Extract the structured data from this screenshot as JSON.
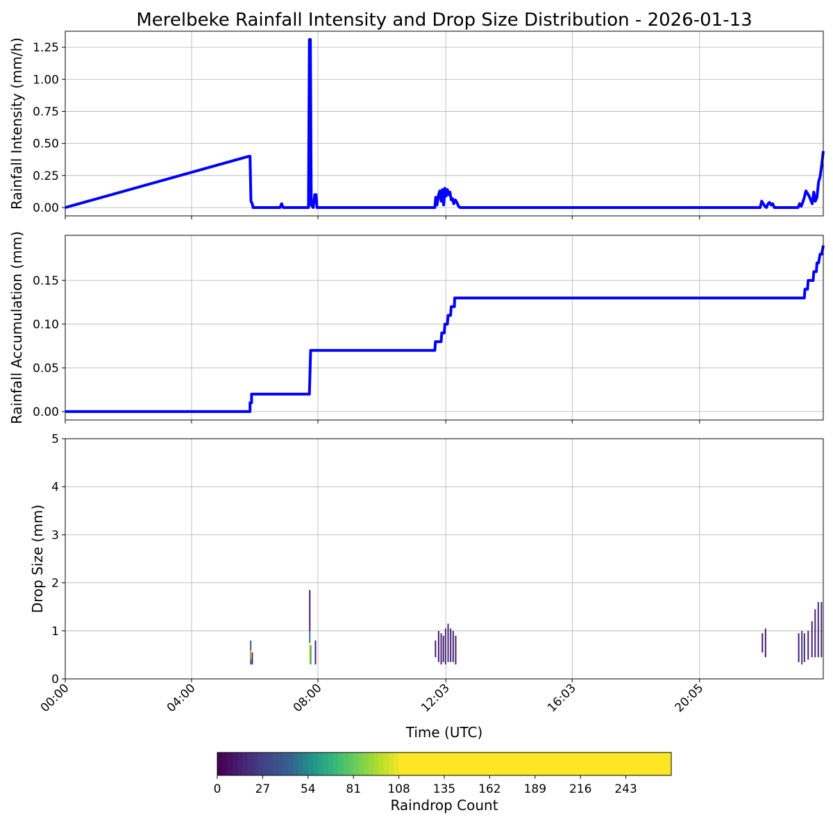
{
  "figure_title": "Merelbeke Rainfall Intensity and Drop Size Distribution - 2026-01-13",
  "chart_data": [
    {
      "type": "line",
      "ylabel": "Rainfall Intensity (mm/h)",
      "xlim": [
        0,
        24
      ],
      "ylim": [
        -0.065,
        1.375
      ],
      "yticks": [
        0.0,
        0.25,
        0.5,
        0.75,
        1.0,
        1.25
      ],
      "ytick_labels": [
        "0.00",
        "0.25",
        "0.50",
        "0.75",
        "1.00",
        "1.25"
      ],
      "grid": true,
      "color": "#0000ff",
      "x": [
        0,
        5.82,
        5.85,
        5.88,
        5.92,
        5.95,
        5.98,
        6.05,
        6.8,
        6.85,
        6.9,
        7.7,
        7.73,
        7.76,
        7.79,
        7.85,
        7.9,
        7.94,
        7.97,
        8.0,
        11.7,
        11.73,
        11.77,
        11.82,
        11.86,
        11.9,
        11.94,
        11.98,
        12.02,
        12.06,
        12.1,
        12.14,
        12.18,
        12.22,
        12.26,
        12.3,
        12.35,
        12.4,
        12.45,
        12.5,
        12.55,
        22.0,
        22.05,
        22.1,
        22.15,
        22.2,
        22.25,
        22.3,
        22.35,
        22.4,
        22.45,
        23.2,
        23.25,
        23.3,
        23.35,
        23.4,
        23.45,
        23.5,
        23.55,
        23.6,
        23.65,
        23.7,
        23.75,
        23.8,
        23.85,
        23.9,
        23.95,
        24.0
      ],
      "y": [
        0,
        0.4,
        0.4,
        0.05,
        0.03,
        0,
        0,
        0,
        0,
        0.03,
        0,
        0,
        1.31,
        1.31,
        0.02,
        0,
        0.1,
        0.1,
        0,
        0,
        0,
        0.08,
        0.02,
        0.1,
        0.13,
        0.05,
        0.14,
        0.02,
        0.15,
        0.09,
        0.14,
        0.1,
        0.12,
        0.06,
        0.07,
        0.03,
        0.06,
        0.04,
        0.01,
        0,
        0,
        0,
        0.05,
        0.03,
        0.01,
        0,
        0.03,
        0.04,
        0.02,
        0.03,
        0,
        0,
        0.03,
        0.01,
        0.04,
        0.08,
        0.13,
        0.11,
        0.09,
        0.06,
        0.03,
        0.12,
        0.05,
        0.08,
        0.2,
        0.24,
        0.33,
        0.44
      ]
    },
    {
      "type": "line",
      "ylabel": "Rainfall Accumulation (mm)",
      "xlim": [
        0,
        24
      ],
      "ylim": [
        -0.0096,
        0.2016
      ],
      "yticks": [
        0.0,
        0.05,
        0.1,
        0.15
      ],
      "ytick_labels": [
        "0.00",
        "0.05",
        "0.10",
        "0.15"
      ],
      "grid": true,
      "color": "#0000ff",
      "x": [
        0,
        5.85,
        5.85,
        5.9,
        5.9,
        7.73,
        7.77,
        11.7,
        11.72,
        11.9,
        11.92,
        12.0,
        12.02,
        12.1,
        12.12,
        12.2,
        12.22,
        12.32,
        12.33,
        23.4,
        23.42,
        23.5,
        23.52,
        23.68,
        23.7,
        23.78,
        23.8,
        23.85,
        23.9,
        23.95,
        24.0
      ],
      "y": [
        0,
        0,
        0.01,
        0.01,
        0.02,
        0.02,
        0.07,
        0.07,
        0.08,
        0.08,
        0.09,
        0.09,
        0.1,
        0.1,
        0.11,
        0.11,
        0.12,
        0.12,
        0.13,
        0.13,
        0.14,
        0.14,
        0.15,
        0.15,
        0.16,
        0.16,
        0.17,
        0.17,
        0.18,
        0.18,
        0.19
      ]
    },
    {
      "type": "heatmap",
      "xlabel": "Time (UTC)",
      "ylabel": "Drop Size (mm)",
      "xlim": [
        0,
        24
      ],
      "ylim": [
        0,
        5
      ],
      "yticks": [
        0,
        1,
        2,
        3,
        4,
        5
      ],
      "ytick_labels": [
        "0",
        "1",
        "2",
        "3",
        "4",
        "5"
      ],
      "xticks": [
        0,
        4,
        8,
        12.05,
        16.05,
        20.083
      ],
      "xtick_labels": [
        "00:00",
        "04:00",
        "08:00",
        "12:03",
        "16:03",
        "20:05"
      ],
      "grid": true,
      "cells": [
        {
          "t": 5.85,
          "dmin": 0.3,
          "dmax": 0.8,
          "count": 40
        },
        {
          "t": 5.87,
          "dmin": 0.4,
          "dmax": 0.6,
          "count": 250
        },
        {
          "t": 5.9,
          "dmin": 0.3,
          "dmax": 0.55,
          "count": 15
        },
        {
          "t": 7.72,
          "dmin": 1.0,
          "dmax": 1.85,
          "count": 8
        },
        {
          "t": 7.72,
          "dmin": 0.75,
          "dmax": 1.0,
          "count": 45
        },
        {
          "t": 7.72,
          "dmin": 0.3,
          "dmax": 0.75,
          "count": 250
        },
        {
          "t": 7.75,
          "dmin": 0.3,
          "dmax": 0.7,
          "count": 60
        },
        {
          "t": 7.9,
          "dmin": 0.3,
          "dmax": 0.8,
          "count": 12
        },
        {
          "t": 11.7,
          "dmin": 0.45,
          "dmax": 0.8,
          "count": 10
        },
        {
          "t": 11.8,
          "dmin": 0.35,
          "dmax": 1.0,
          "count": 12
        },
        {
          "t": 11.88,
          "dmin": 0.3,
          "dmax": 0.95,
          "count": 14
        },
        {
          "t": 11.95,
          "dmin": 0.35,
          "dmax": 0.9,
          "count": 12
        },
        {
          "t": 12.02,
          "dmin": 0.3,
          "dmax": 1.05,
          "count": 18
        },
        {
          "t": 12.1,
          "dmin": 0.35,
          "dmax": 1.15,
          "count": 16
        },
        {
          "t": 12.18,
          "dmin": 0.35,
          "dmax": 1.05,
          "count": 14
        },
        {
          "t": 12.26,
          "dmin": 0.35,
          "dmax": 1.0,
          "count": 12
        },
        {
          "t": 12.34,
          "dmin": 0.3,
          "dmax": 0.9,
          "count": 10
        },
        {
          "t": 22.05,
          "dmin": 0.55,
          "dmax": 0.95,
          "count": 8
        },
        {
          "t": 22.15,
          "dmin": 0.45,
          "dmax": 1.05,
          "count": 10
        },
        {
          "t": 23.2,
          "dmin": 0.35,
          "dmax": 0.95,
          "count": 10
        },
        {
          "t": 23.3,
          "dmin": 0.3,
          "dmax": 1.0,
          "count": 20
        },
        {
          "t": 23.38,
          "dmin": 0.35,
          "dmax": 0.95,
          "count": 15
        },
        {
          "t": 23.5,
          "dmin": 0.4,
          "dmax": 1.0,
          "count": 12
        },
        {
          "t": 23.62,
          "dmin": 0.45,
          "dmax": 1.2,
          "count": 12
        },
        {
          "t": 23.72,
          "dmin": 0.45,
          "dmax": 1.45,
          "count": 14
        },
        {
          "t": 23.82,
          "dmin": 0.45,
          "dmax": 1.6,
          "count": 15
        },
        {
          "t": 23.92,
          "dmin": 0.45,
          "dmax": 1.6,
          "count": 16
        }
      ]
    },
    {
      "type": "colorbar",
      "label": "Raindrop Count",
      "range": [
        0,
        270
      ],
      "saturation_value": 108,
      "ticks": [
        0,
        27,
        54,
        81,
        108,
        135,
        162,
        189,
        216,
        243
      ],
      "tick_labels": [
        "0",
        "27",
        "54",
        "81",
        "108",
        "135",
        "162",
        "189",
        "216",
        "243"
      ],
      "colormap": "viridis"
    }
  ]
}
